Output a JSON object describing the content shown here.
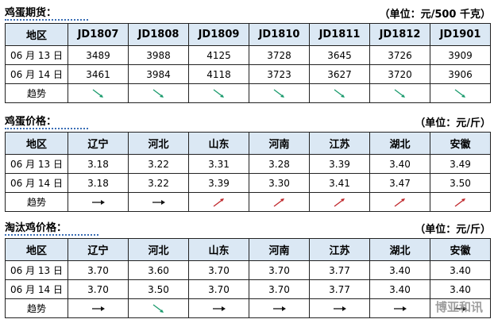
{
  "sections": [
    {
      "title": "鸡蛋期货：",
      "unit": "（单位：元/500 千克）",
      "header": [
        "地区",
        "JD1807",
        "JD1808",
        "JD1809",
        "JD1810",
        "JD1811",
        "JD1812",
        "JD1901"
      ],
      "rows": [
        [
          "06 月 13 日",
          "3489",
          "3988",
          "4125",
          "3728",
          "3645",
          "3726",
          "3909"
        ],
        [
          "06 月 14 日",
          "3461",
          "3984",
          "4118",
          "3723",
          "3627",
          "3720",
          "3906"
        ]
      ],
      "trend_label": "趋势"
    },
    {
      "title": "鸡蛋价格：",
      "unit": "（单位：元/斤）",
      "header": [
        "地区",
        "辽宁",
        "河北",
        "山东",
        "河南",
        "江苏",
        "湖北",
        "安徽"
      ],
      "rows": [
        [
          "06 月 13 日",
          "3.18",
          "3.22",
          "3.31",
          "3.28",
          "3.39",
          "3.40",
          "3.49"
        ],
        [
          "06 月 14 日",
          "3.18",
          "3.22",
          "3.39",
          "3.30",
          "3.41",
          "3.47",
          "3.50"
        ]
      ],
      "trend_label": "趋势"
    },
    {
      "title": "淘汰鸡价格：",
      "unit": "（单位：元/斤）",
      "header": [
        "地区",
        "辽宁",
        "河北",
        "山东",
        "河南",
        "江苏",
        "湖北",
        "安徽"
      ],
      "rows": [
        [
          "06 月 13 日",
          "3.70",
          "3.60",
          "3.70",
          "3.70",
          "3.77",
          "3.40",
          "3.40"
        ],
        [
          "06 月 14 日",
          "3.70",
          "3.50",
          "3.70",
          "3.70",
          "3.77",
          "3.40",
          "3.40"
        ]
      ],
      "trend_label": "趋势"
    }
  ],
  "watermark": "博亚和讯"
}
